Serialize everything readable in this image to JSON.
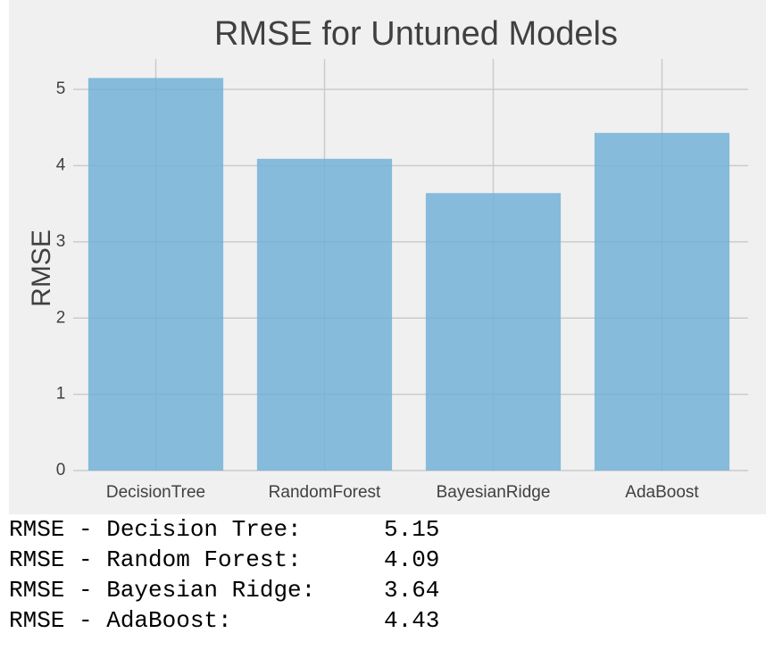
{
  "chart_data": {
    "type": "bar",
    "title": "RMSE for Untuned Models",
    "xlabel": "",
    "ylabel": "RMSE",
    "categories": [
      "DecisionTree",
      "RandomForest",
      "BayesianRidge",
      "AdaBoost"
    ],
    "values": [
      5.15,
      4.09,
      3.64,
      4.43
    ],
    "ylim": [
      0,
      5.4
    ],
    "yticks": [
      0,
      1,
      2,
      3,
      4,
      5
    ],
    "grid": true,
    "bar_color": "#6baed6"
  },
  "output": {
    "lines": [
      {
        "label": "RMSE - Decision Tree:",
        "value": "5.15"
      },
      {
        "label": "RMSE - Random Forest:",
        "value": "4.09"
      },
      {
        "label": "RMSE - Bayesian Ridge:",
        "value": "3.64"
      },
      {
        "label": "RMSE - AdaBoost:",
        "value": "4.43"
      }
    ]
  }
}
